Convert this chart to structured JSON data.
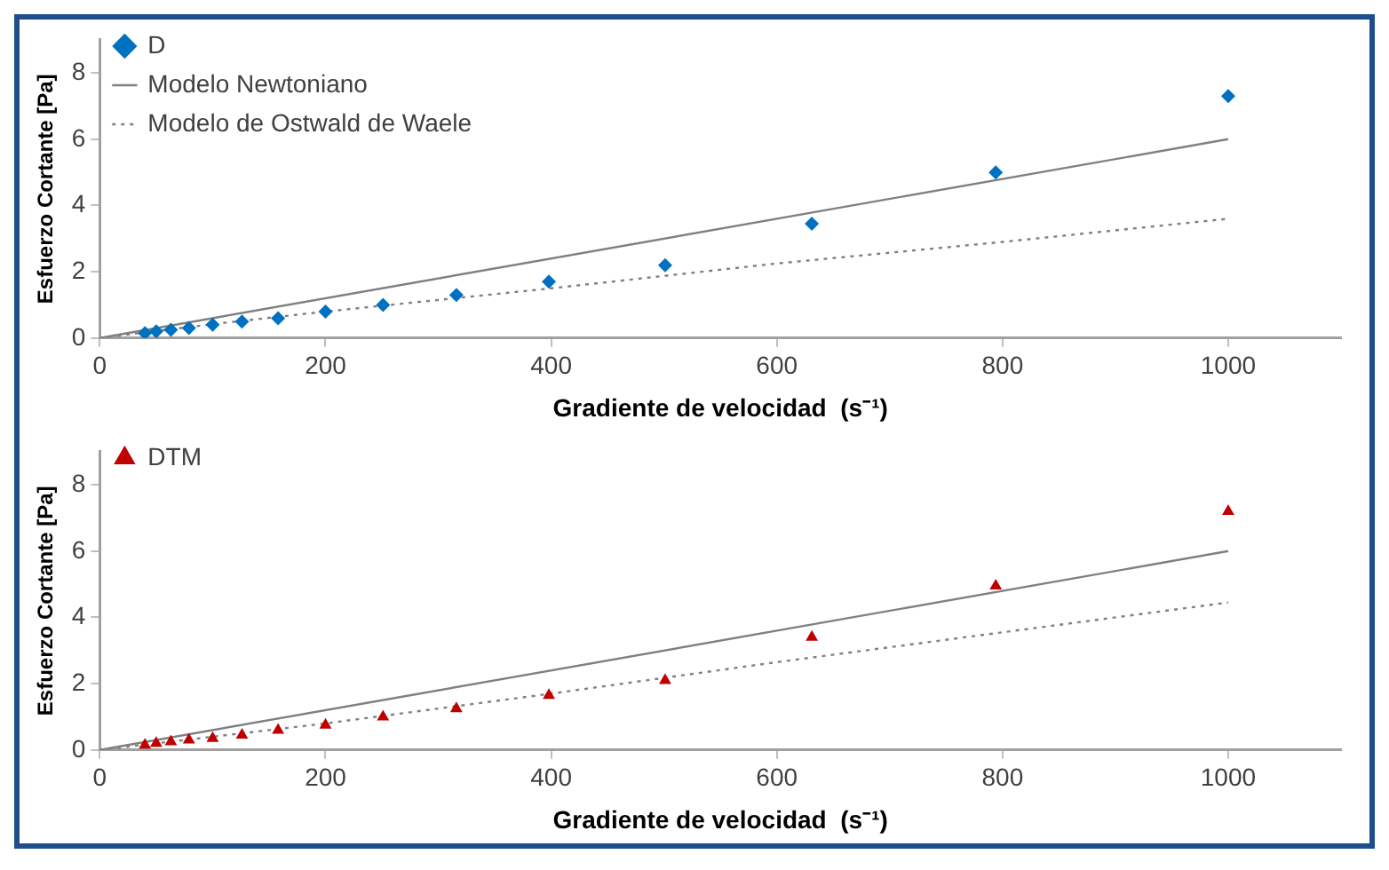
{
  "chart_data": [
    {
      "type": "scatter",
      "xlabel": "Gradiente de velocidad  (s⁻¹)",
      "ylabel": "Esfuerzo Cortante [Pa]",
      "xlim": [
        0,
        1100
      ],
      "ylim": [
        0,
        9
      ],
      "xticks": [
        0,
        200,
        400,
        600,
        800,
        1000
      ],
      "yticks": [
        0,
        2,
        4,
        6,
        8
      ],
      "grid": false,
      "legend": "top left",
      "series": [
        {
          "name": "D",
          "type": "scatter",
          "marker": "diamond",
          "color": "#0070c0",
          "x": [
            40,
            50,
            63,
            79,
            100,
            126,
            158,
            200,
            251,
            316,
            398,
            501,
            631,
            794,
            1000
          ],
          "values": [
            0.15,
            0.2,
            0.25,
            0.3,
            0.4,
            0.5,
            0.6,
            0.8,
            1.0,
            1.3,
            1.7,
            2.2,
            3.45,
            5.0,
            7.3
          ]
        },
        {
          "name": "Modelo Newtoniano",
          "type": "line",
          "marker": "none",
          "line_style": "solid",
          "color": "#808080",
          "x": [
            0,
            1000
          ],
          "values": [
            0,
            6.0
          ]
        },
        {
          "name": "Modelo de Ostwald de Waele",
          "type": "line",
          "marker": "none",
          "line_style": "dotted",
          "color": "#808080",
          "x": [
            0,
            100,
            200,
            400,
            600,
            800,
            1000
          ],
          "values": [
            0,
            0.42,
            0.8,
            1.5,
            2.25,
            2.9,
            3.6
          ]
        }
      ]
    },
    {
      "type": "scatter",
      "xlabel": "Gradiente de velocidad  (s⁻¹)",
      "ylabel": "Esfuerzo Cortante [Pa]",
      "xlim": [
        0,
        1100
      ],
      "ylim": [
        0,
        9
      ],
      "xticks": [
        0,
        200,
        400,
        600,
        800,
        1000
      ],
      "yticks": [
        0,
        2,
        4,
        6,
        8
      ],
      "grid": false,
      "legend": "top left",
      "series": [
        {
          "name": "DTM",
          "type": "scatter",
          "marker": "triangle",
          "color": "#c00000",
          "x": [
            40,
            50,
            63,
            79,
            100,
            126,
            158,
            200,
            251,
            316,
            398,
            501,
            631,
            794,
            1000
          ],
          "values": [
            0.15,
            0.2,
            0.25,
            0.3,
            0.35,
            0.45,
            0.6,
            0.75,
            1.0,
            1.25,
            1.65,
            2.1,
            3.4,
            4.95,
            7.2
          ]
        },
        {
          "type": "line",
          "marker": "none",
          "line_style": "solid",
          "color": "#808080",
          "x": [
            0,
            1000
          ],
          "values": [
            0,
            6.0
          ]
        },
        {
          "type": "line",
          "marker": "none",
          "line_style": "dotted",
          "color": "#808080",
          "x": [
            0,
            200,
            400,
            600,
            800,
            1000
          ],
          "values": [
            0,
            0.8,
            1.7,
            2.65,
            3.55,
            4.45
          ]
        }
      ]
    }
  ]
}
